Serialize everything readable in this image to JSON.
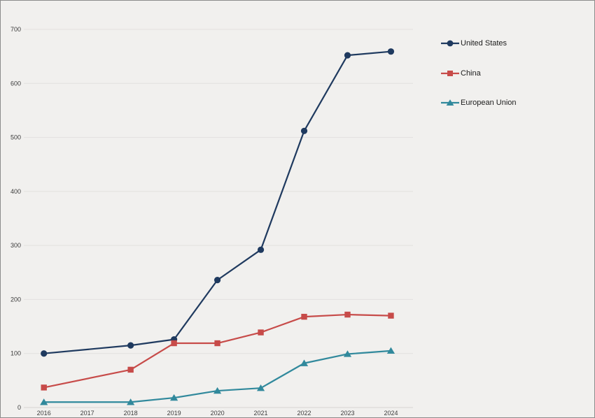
{
  "chart_data": {
    "type": "line",
    "title": "",
    "xlabel": "",
    "ylabel": "",
    "x": [
      2016,
      2018,
      2019,
      2020,
      2021,
      2022,
      2023,
      2024
    ],
    "x_ticks": [
      "2016",
      "2017",
      "2018",
      "2019",
      "2020",
      "2021",
      "2022",
      "2023",
      "2024"
    ],
    "y_ticks": [
      0,
      100,
      200,
      300,
      400,
      500,
      600,
      700
    ],
    "ylim": [
      0,
      720
    ],
    "grid": "horizontal",
    "legend_position": "right",
    "series": [
      {
        "name": "United States",
        "color": "#1f3a5f",
        "marker": "circle",
        "values": [
          100,
          115,
          126,
          236,
          292,
          512,
          652,
          659
        ]
      },
      {
        "name": "China",
        "color": "#c74b49",
        "marker": "square",
        "values": [
          37,
          70,
          119,
          119,
          139,
          168,
          172,
          170
        ]
      },
      {
        "name": "European Union",
        "color": "#31899c",
        "marker": "triangle",
        "values": [
          10,
          10,
          18,
          31,
          36,
          82,
          99,
          105
        ]
      }
    ]
  },
  "colors": {
    "background": "#f1f0ee",
    "gridline": "#e2e1df",
    "axis_line": "#d6d5d3",
    "tick_label": "#3c3c3c",
    "legend_text": "#1b1b1b",
    "border": "#8c8c8c"
  }
}
